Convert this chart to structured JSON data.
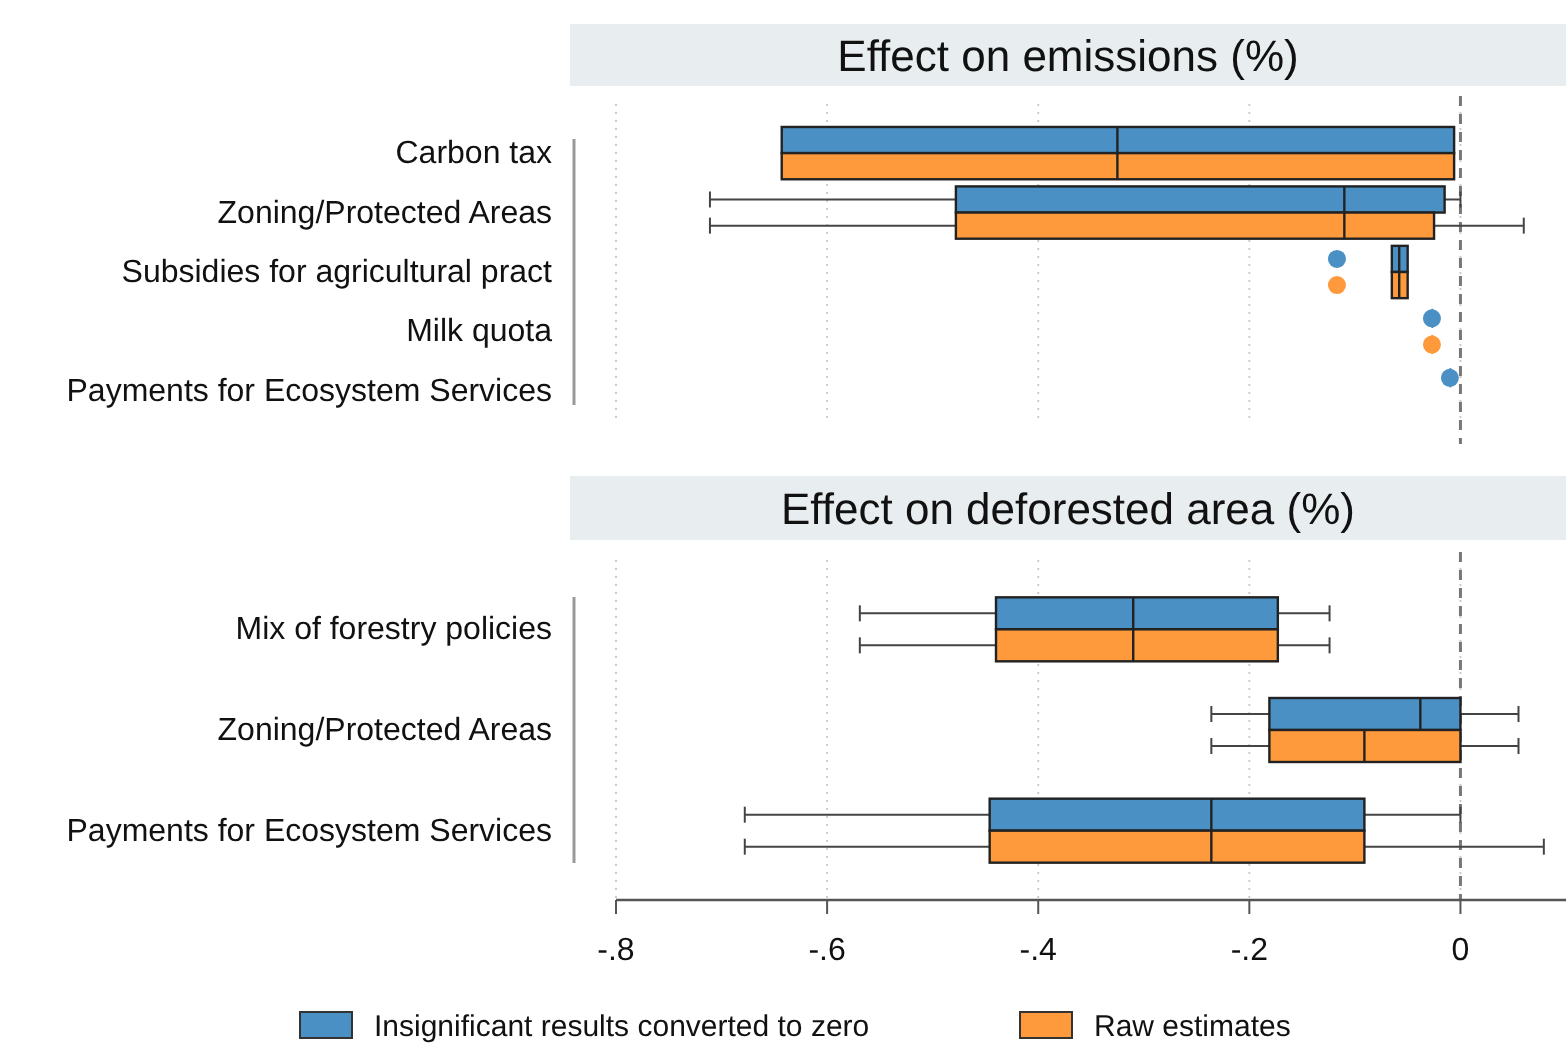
{
  "chart_data": [
    {
      "type": "box",
      "orientation": "horizontal",
      "title": "Effect on emissions (%)",
      "categories": [
        "Carbon tax",
        "Zoning/Protected Areas",
        "Subsidies for agricultural pract",
        "Milk quota",
        "Payments for Ecosystem Services"
      ],
      "xlim": [
        -0.8,
        0.1
      ],
      "xticks": [
        -0.8,
        -0.6,
        -0.4,
        -0.2,
        0
      ],
      "tick_labels": "y",
      "grid": "x",
      "ref_lines": [
        {
          "axis": "x",
          "value": 0,
          "label": null,
          "color": "#777777",
          "line_style": "dashed"
        }
      ],
      "series": [
        {
          "color": "#4a90c4",
          "boxes": [
            {
              "low": -0.643,
              "q1": -0.643,
              "median": -0.325,
              "q3": -0.006,
              "high": -0.006
            },
            {
              "low": -0.711,
              "q1": -0.478,
              "median": -0.11,
              "q3": -0.015,
              "high": 0
            },
            {
              "low": -0.065,
              "q1": -0.065,
              "median": -0.058,
              "q3": -0.05,
              "high": -0.05,
              "outliers": [
                -0.117
              ]
            },
            {
              "low": -0.027,
              "q1": -0.027,
              "median": -0.027,
              "q3": -0.027,
              "high": -0.027
            },
            {
              "low": -0.01,
              "q1": -0.01,
              "median": -0.01,
              "q3": -0.01,
              "high": -0.01
            }
          ]
        },
        {
          "color": "#ff9a3c",
          "boxes": [
            {
              "low": -0.643,
              "q1": -0.643,
              "median": -0.325,
              "q3": -0.006,
              "high": -0.006
            },
            {
              "low": -0.711,
              "q1": -0.478,
              "median": -0.11,
              "q3": -0.025,
              "high": 0.06
            },
            {
              "low": -0.065,
              "q1": -0.065,
              "median": -0.058,
              "q3": -0.05,
              "high": -0.05,
              "outliers": [
                -0.117
              ]
            },
            {
              "low": -0.027,
              "q1": -0.027,
              "median": -0.027,
              "q3": -0.027,
              "high": -0.027
            },
            null
          ]
        }
      ]
    },
    {
      "type": "box",
      "orientation": "horizontal",
      "title": "Effect on deforested area (%)",
      "categories": [
        "Mix of forestry policies",
        "Zoning/Protected Areas",
        "Payments for Ecosystem Services"
      ],
      "xlim": [
        -0.8,
        0.1
      ],
      "xticks": [
        {
          "value": -0.8,
          "label": "-.8"
        },
        {
          "value": -0.6,
          "label": "-.6"
        },
        {
          "value": -0.4,
          "label": "-.4"
        },
        {
          "value": -0.2,
          "label": "-.2"
        },
        0
      ],
      "grid": "x",
      "legend": "bottom",
      "ref_lines": [
        {
          "axis": "x",
          "value": 0,
          "label": null,
          "color": "#777777",
          "line_style": "dashed"
        }
      ],
      "series": [
        {
          "name": "Insignificant results converted to zero",
          "color": "#4a90c4",
          "boxes": [
            {
              "low": -0.569,
              "q1": -0.44,
              "median": -0.31,
              "q3": -0.173,
              "high": -0.124
            },
            {
              "low": -0.236,
              "q1": -0.181,
              "median": -0.038,
              "q3": 0,
              "high": 0.055
            },
            {
              "low": -0.678,
              "q1": -0.446,
              "median": -0.236,
              "q3": -0.091,
              "high": 0
            }
          ]
        },
        {
          "name": "Raw estimates",
          "color": "#ff9a3c",
          "boxes": [
            {
              "low": -0.569,
              "q1": -0.44,
              "median": -0.31,
              "q3": -0.173,
              "high": -0.124
            },
            {
              "low": -0.236,
              "q1": -0.181,
              "median": -0.091,
              "q3": 0,
              "high": 0.055
            },
            {
              "low": -0.678,
              "q1": -0.446,
              "median": -0.236,
              "q3": -0.091,
              "high": 0.079
            }
          ]
        }
      ]
    }
  ]
}
